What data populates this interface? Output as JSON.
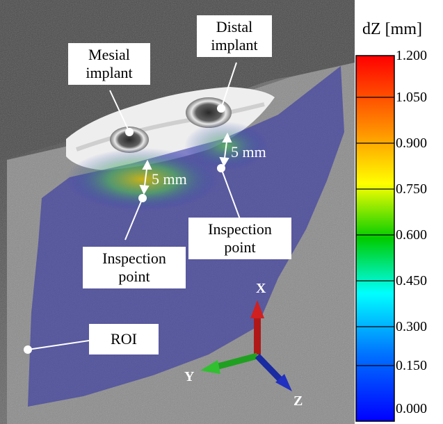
{
  "callouts": {
    "mesial": [
      "Mesial",
      "implant"
    ],
    "distal": [
      "Distal",
      "implant"
    ],
    "inspection_left": [
      "Inspection",
      "point"
    ],
    "inspection_right": [
      "Inspection",
      "point"
    ],
    "roi": "ROI"
  },
  "distances": {
    "left": "5 mm",
    "right": "5 mm"
  },
  "axes": {
    "x": "X",
    "y": "Y",
    "z": "Z"
  },
  "colorbar": {
    "title": "dZ [mm]",
    "ticks": [
      "1.200",
      "1.050",
      "0.900",
      "0.750",
      "0.600",
      "0.450",
      "0.300",
      "0.150",
      "0.000"
    ],
    "colors": [
      "#ff0000",
      "#ff8000",
      "#ffff00",
      "#00c000",
      "#00ffff",
      "#0070ff",
      "#0000ff"
    ]
  }
}
